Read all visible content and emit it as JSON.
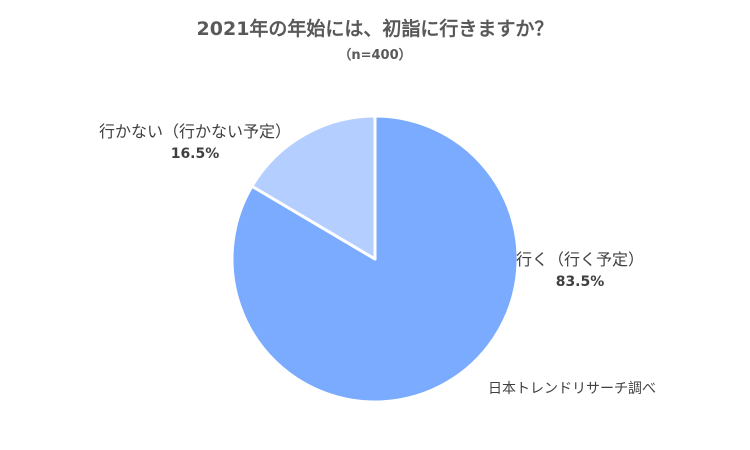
{
  "chart_data": {
    "type": "pie",
    "title": "2021年の年始には、初詣に行きますか？",
    "subtitle": "（n=400）",
    "slices": [
      {
        "label": "行く（行く予定）",
        "value_label": "83.5%",
        "value": 83.5,
        "color": "#7aabff"
      },
      {
        "label": "行かない（行かない予定）",
        "value_label": "16.5%",
        "value": 16.5,
        "color": "#b3ceff"
      }
    ],
    "start_angle_deg": 0,
    "direction": "clockwise",
    "legend": "none"
  },
  "source": "日本トレンドリサーチ調べ"
}
